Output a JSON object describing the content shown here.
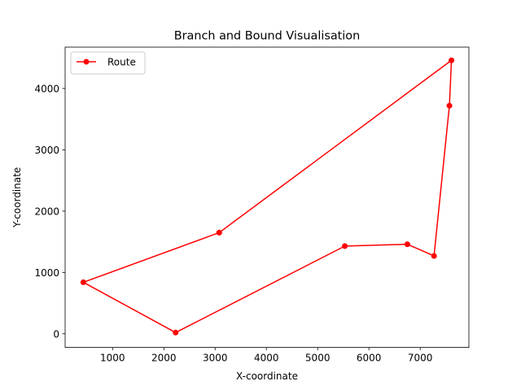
{
  "chart_data": {
    "type": "line",
    "title": "Branch and Bound Visualisation",
    "xlabel": "X-coordinate",
    "ylabel": "Y-coordinate",
    "xlim": [
      75,
      7950
    ],
    "ylim": [
      -222.5,
      4675
    ],
    "xticks": [
      1000,
      2000,
      3000,
      4000,
      5000,
      6000,
      7000
    ],
    "yticks": [
      0,
      1000,
      2000,
      3000,
      4000
    ],
    "grid": false,
    "legend_position": "upper left",
    "series": [
      {
        "name": "Route",
        "color": "#ff0000",
        "marker": "circle",
        "x": [
          3080,
          7610,
          7570,
          7270,
          6750,
          5530,
          2230,
          430,
          3080
        ],
        "y": [
          1650,
          4460,
          3720,
          1270,
          1460,
          1430,
          20,
          840,
          1650
        ]
      }
    ]
  }
}
